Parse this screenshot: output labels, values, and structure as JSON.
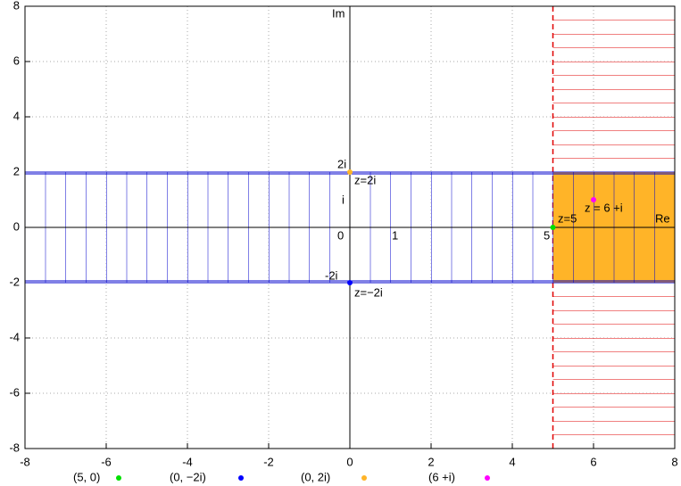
{
  "chart_data": {
    "type": "scatter",
    "xlim": [
      -8,
      8
    ],
    "ylim": [
      -8,
      8
    ],
    "xticks": [
      -8,
      -6,
      -4,
      -2,
      0,
      2,
      4,
      6,
      8
    ],
    "yticks": [
      -8,
      -6,
      -4,
      -2,
      0,
      2,
      4,
      6,
      8
    ],
    "grid": true,
    "regions": [
      {
        "x": [
          5,
          8
        ],
        "y": [
          -8,
          8
        ],
        "color": "#e00000",
        "hatch": "horizontal"
      },
      {
        "x": [
          5,
          8
        ],
        "y": [
          -2,
          2
        ],
        "color": "#ffb428",
        "hatch": "none"
      },
      {
        "x": [
          -8,
          8
        ],
        "y": [
          -2,
          2
        ],
        "color": "#0000cc",
        "hatch": "vertical"
      }
    ],
    "series": [
      {
        "name": "(5, 0)",
        "color": "#00e000",
        "x": [
          5
        ],
        "values": [
          0
        ]
      },
      {
        "name": "(0, −2i)",
        "color": "#0000ff",
        "x": [
          0
        ],
        "values": [
          -2
        ]
      },
      {
        "name": "(0, 2i)",
        "color": "#ffb428",
        "x": [
          0
        ],
        "values": [
          2
        ]
      },
      {
        "name": "(6 +i)",
        "color": "#ff00ff",
        "x": [
          6
        ],
        "values": [
          1
        ]
      }
    ],
    "annotations": [
      "Im",
      "Re",
      "2i",
      "i",
      "0",
      "1",
      "5",
      "-2i",
      "z=2i",
      "z=−2i",
      "z=5",
      "z = 6 +i"
    ]
  }
}
